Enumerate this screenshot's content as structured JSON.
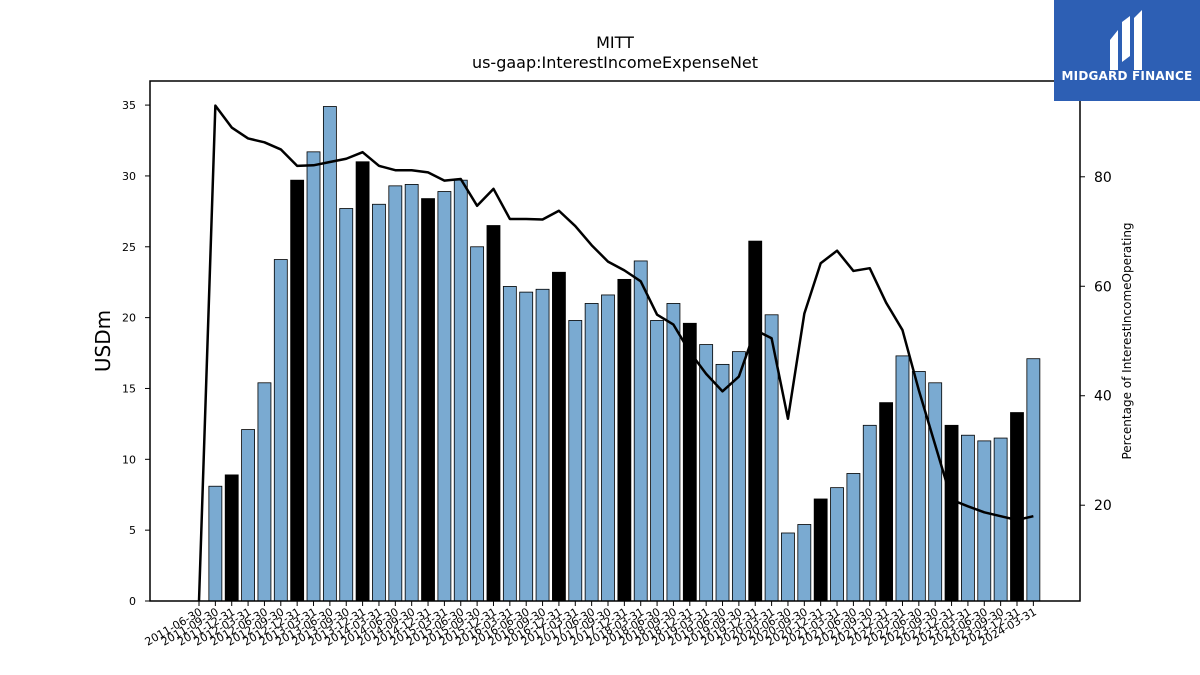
{
  "brand": {
    "name": "MIDGARD FINANCE",
    "logo_icon": "midgard-m-icon",
    "bg_color": "#2d5fb4"
  },
  "chart_data": {
    "type": "bar",
    "title": "MITT",
    "subtitle": "us-gaap:InterestIncomeExpenseNet",
    "ylabel": "USDm",
    "y2label": "Percentage of InterestIncomeOperating",
    "ylim": [
      0,
      36.7
    ],
    "y2lim": [
      2.5,
      97.5
    ],
    "yticks": [
      0,
      5,
      10,
      15,
      20,
      25,
      30,
      35
    ],
    "y2ticks": [
      20,
      40,
      60,
      80
    ],
    "colors": {
      "bar": "#7aaad1",
      "bar_highlight": "#000000",
      "line": "#000000"
    },
    "categories": [
      "2011-06-30",
      "2011-09-30",
      "2011-12-31",
      "2012-03-31",
      "2012-06-30",
      "2012-09-30",
      "2012-12-31",
      "2013-03-31",
      "2013-06-30",
      "2013-09-30",
      "2013-12-31",
      "2014-03-31",
      "2014-06-30",
      "2014-09-30",
      "2014-12-31",
      "2015-03-31",
      "2015-06-30",
      "2015-09-30",
      "2015-12-31",
      "2016-03-31",
      "2016-06-30",
      "2016-09-30",
      "2016-12-31",
      "2017-03-31",
      "2017-06-30",
      "2017-09-30",
      "2017-12-31",
      "2018-03-31",
      "2018-06-30",
      "2018-09-30",
      "2018-12-31",
      "2019-03-31",
      "2019-06-30",
      "2019-09-30",
      "2019-12-31",
      "2020-03-31",
      "2020-06-30",
      "2020-09-30",
      "2020-12-31",
      "2021-03-31",
      "2021-06-30",
      "2021-09-30",
      "2021-12-31",
      "2022-03-31",
      "2022-06-30",
      "2022-09-30",
      "2022-12-31",
      "2023-03-31",
      "2023-06-30",
      "2023-09-30",
      "2023-12-31",
      "2024-03-31"
    ],
    "series": [
      {
        "type": "bar",
        "values": [
          0,
          8.1,
          8.9,
          12.1,
          15.4,
          24.1,
          29.7,
          31.7,
          34.9,
          27.7,
          31.0,
          28.0,
          29.3,
          29.4,
          28.4,
          28.9,
          29.7,
          25.0,
          26.5,
          22.2,
          21.8,
          22.0,
          23.2,
          19.8,
          21.0,
          21.6,
          22.7,
          24.0,
          19.8,
          21.0,
          19.6,
          18.1,
          16.7,
          17.6,
          25.4,
          20.2,
          4.8,
          5.4,
          7.2,
          8.0,
          9.0,
          12.4,
          14.0,
          17.3,
          16.2,
          15.4,
          12.4,
          11.7,
          11.3,
          11.5,
          13.3,
          17.1
        ],
        "highlight": [
          false,
          false,
          true,
          false,
          false,
          false,
          true,
          false,
          false,
          false,
          true,
          false,
          false,
          false,
          true,
          false,
          false,
          false,
          true,
          false,
          false,
          false,
          true,
          false,
          false,
          false,
          true,
          false,
          false,
          false,
          true,
          false,
          false,
          false,
          true,
          false,
          false,
          false,
          true,
          false,
          false,
          false,
          true,
          false,
          false,
          false,
          true,
          false,
          false,
          false,
          true,
          false
        ]
      },
      {
        "type": "line",
        "axis": "right",
        "values": [
          2.5,
          93.0,
          89.0,
          87.0,
          86.3,
          85.0,
          82.0,
          82.1,
          82.7,
          83.3,
          84.5,
          82.0,
          81.2,
          81.2,
          80.8,
          79.3,
          79.6,
          74.7,
          77.8,
          72.3,
          72.3,
          72.2,
          73.8,
          71.0,
          67.5,
          64.5,
          62.9,
          60.9,
          54.8,
          53.0,
          48.0,
          44.0,
          40.8,
          43.5,
          52.0,
          50.5,
          35.8,
          55.0,
          64.2,
          66.5,
          62.8,
          63.3,
          57.0,
          52.0,
          41.0,
          31.0,
          21.0,
          19.8,
          18.7,
          18.0,
          17.3,
          18.0
        ]
      }
    ]
  }
}
